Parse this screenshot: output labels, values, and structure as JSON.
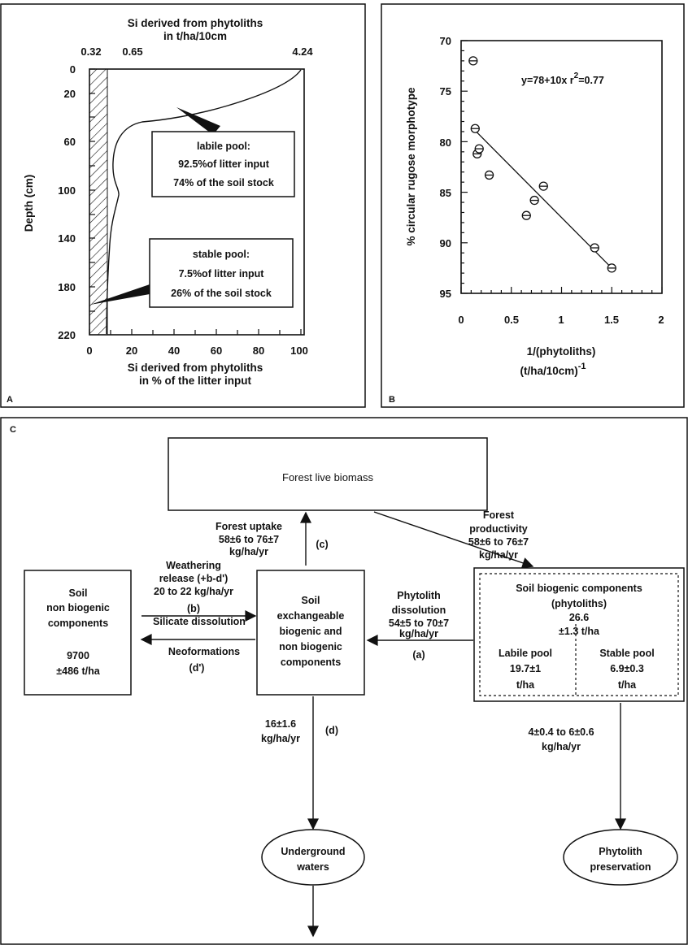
{
  "panel_a": {
    "letter": "A",
    "top_label_line1": "Si derived from phytoliths",
    "top_label_line2": "in t/ha/10cm",
    "top_ticks": [
      "0.32",
      "0.65",
      "4.24"
    ],
    "y_label": "Depth (cm)",
    "y_ticks": [
      "0",
      "20",
      "60",
      "100",
      "140",
      "180",
      "220"
    ],
    "x_ticks": [
      "0",
      "20",
      "40",
      "60",
      "80",
      "100"
    ],
    "bottom_label_line1": "Si derived from phytoliths",
    "bottom_label_line2": "in % of the litter input",
    "labile_box": [
      "labile pool:",
      "92.5%of litter input",
      "74% of the soil stock"
    ],
    "stable_box": [
      "stable pool:",
      "7.5%of litter input",
      "26% of the soil stock"
    ]
  },
  "panel_b": {
    "letter": "B",
    "equation": "y=78+10x  r",
    "equation_sup": "2",
    "equation_tail": "=0.77",
    "y_label": "% circular rugose morphotype",
    "y_ticks": [
      "70",
      "75",
      "80",
      "85",
      "90",
      "95"
    ],
    "x_ticks": [
      "0",
      "0.5",
      "1",
      "1.5",
      "2"
    ],
    "x_label_line1": "1/(phytoliths)",
    "x_label_line2": "(t/ha/10cm)",
    "x_label_sup": "-1"
  },
  "chart_data": {
    "type": "scatter",
    "xlabel": "1/(phytoliths) (t/ha/10cm)-1",
    "ylabel": "% circular rugose morphotype",
    "xlim": [
      0,
      2
    ],
    "ylim": [
      70,
      95
    ],
    "y_inverted": true,
    "x": [
      0.12,
      0.14,
      0.16,
      0.18,
      0.28,
      0.65,
      0.73,
      0.82,
      1.33,
      1.5
    ],
    "y": [
      72,
      78.7,
      81.2,
      80.7,
      83.3,
      87.3,
      85.8,
      84.4,
      90.5,
      92.5
    ],
    "fit": {
      "intercept": 78,
      "slope": 10,
      "r2": 0.77,
      "label": "y=78+10x r2=0.77"
    }
  },
  "panel_c": {
    "letter": "C",
    "biomass": "Forest live biomass",
    "soil_nb": [
      "Soil",
      "non biogenic",
      "components",
      "",
      "9700",
      "±486 t/ha"
    ],
    "exch": [
      "Soil",
      "exchangeable",
      "biogenic and",
      "non biogenic",
      "components"
    ],
    "bio_title": [
      "Soil biogenic components",
      "(phytoliths)",
      "26.6",
      "±1.3  t/ha"
    ],
    "labile": [
      "Labile pool",
      "19.7±1",
      "t/ha"
    ],
    "stable": [
      "Stable pool",
      "6.9±0.3",
      "t/ha"
    ],
    "uptake": [
      "Forest uptake",
      "58±6 to 76±7",
      "kg/ha/yr"
    ],
    "uptake_tag": "(c)",
    "productivity": [
      "Forest",
      "productivity",
      "58±6 to 76±7",
      "kg/ha/yr"
    ],
    "weathering": [
      "Weathering",
      "release (+b-d')",
      "20 to 22 kg/ha/yr"
    ],
    "weathering_tag": "(b)",
    "silicate": "Silicate dissolution",
    "neoformations": "Neoformations",
    "neo_tag": "(d')",
    "dissolution": [
      "Phytolith",
      "dissolution",
      "54±5 to 70±7",
      "kg/ha/yr"
    ],
    "dissolution_tag": "(a)",
    "leach": [
      "16±1.6",
      "kg/ha/yr"
    ],
    "leach_tag": "(d)",
    "preserve_flux": [
      "4±0.4 to 6±0.6",
      "kg/ha/yr"
    ],
    "underground": [
      "Underground",
      "waters"
    ],
    "preservation": [
      "Phytolith",
      "preservation"
    ]
  }
}
